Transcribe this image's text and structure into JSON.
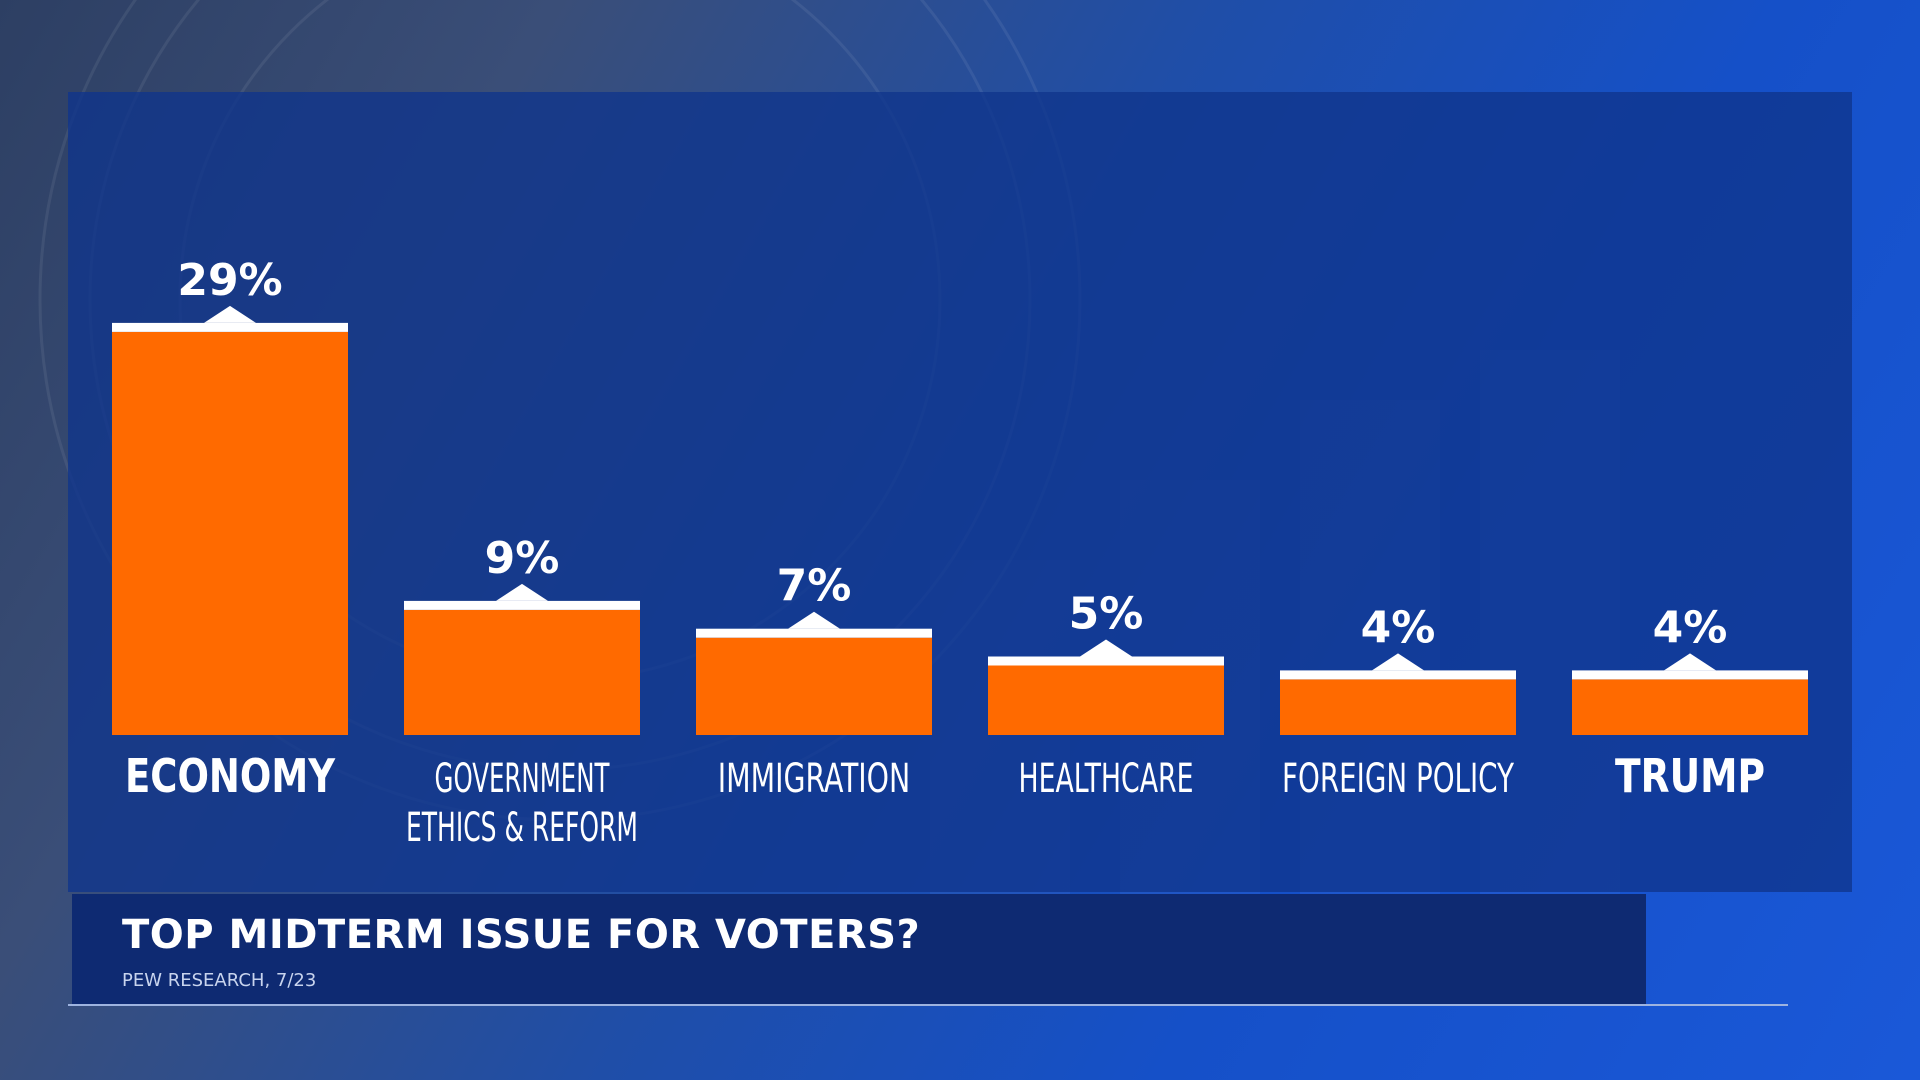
{
  "title": "TOP MIDTERM ISSUE FOR VOTERS?",
  "source": "PEW RESEARCH, 7/23",
  "colors": {
    "bar": "#ff6a00",
    "bar_cap": "#ffffff",
    "panel": "#10348c",
    "title_bar": "#0e2a72"
  },
  "chart_data": {
    "type": "bar",
    "categories": [
      "ECONOMY",
      "GOVERNMENT ETHICS & REFORM",
      "IMMIGRATION",
      "HEALTHCARE",
      "FOREIGN POLICY",
      "TRUMP"
    ],
    "category_lines": [
      [
        "ECONOMY"
      ],
      [
        "GOVERNMENT",
        "ETHICS & REFORM"
      ],
      [
        "IMMIGRATION"
      ],
      [
        "HEALTHCARE"
      ],
      [
        "FOREIGN POLICY"
      ],
      [
        "TRUMP"
      ]
    ],
    "values": [
      29,
      9,
      7,
      5,
      4,
      4
    ],
    "value_labels": [
      "29%",
      "9%",
      "7%",
      "5%",
      "4%",
      "4%"
    ],
    "title": "TOP MIDTERM ISSUE FOR VOTERS?",
    "grid": false,
    "legend": "none"
  }
}
